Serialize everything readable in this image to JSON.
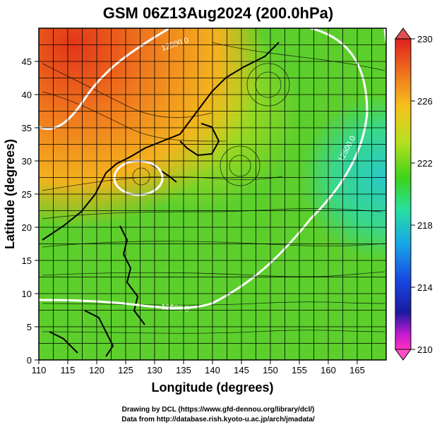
{
  "title": "GSM 06Z13Aug2024 (200.0hPa)",
  "xlabel": "Longitude (degrees)",
  "ylabel": "Latitude  (degrees)",
  "x_ticks": [
    "110",
    "115",
    "120",
    "125",
    "130",
    "135",
    "140",
    "145",
    "150",
    "155",
    "160",
    "165"
  ],
  "y_ticks": [
    "0",
    "5",
    "10",
    "15",
    "20",
    "25",
    "30",
    "35",
    "40",
    "45"
  ],
  "colorbar": {
    "ticks": [
      "230",
      "226",
      "222",
      "218",
      "214",
      "210"
    ],
    "colors": [
      "#e02020",
      "#f07a1e",
      "#f6c21e",
      "#b8e020",
      "#3ed21c",
      "#28e0a0",
      "#18a6e8",
      "#1846e0",
      "#1a1aa0",
      "#c01ad0",
      "#ff30c0"
    ]
  },
  "contour_labels": [
    "12500.0",
    "12500.0",
    "12500.0"
  ],
  "credits": {
    "line1": "Drawing by DCL (https://www.gfd-dennou.org/library/dcl/)",
    "line2": "Data from http://database.rish.kyoto-u.ac.jp/arch/jmadata/"
  },
  "chart_data": {
    "type": "heatmap",
    "title": "GSM 06Z13Aug2024 (200.0hPa)",
    "xlabel": "Longitude (degrees)",
    "ylabel": "Latitude  (degrees)",
    "xlim": [
      110,
      170
    ],
    "ylim": [
      0,
      50
    ],
    "colorbar_range": [
      210,
      230
    ],
    "grid": true,
    "contour_value": 12500.0
  }
}
